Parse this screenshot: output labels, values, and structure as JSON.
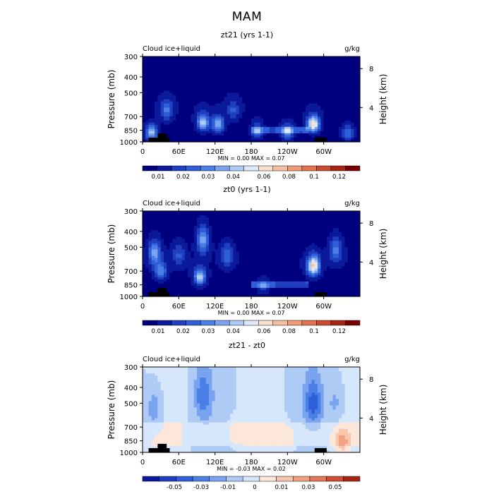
{
  "page_title": "MAM",
  "colors": {
    "full_scale": [
      "#00007f",
      "#0a1a9a",
      "#1f3fbf",
      "#2f5fd8",
      "#4a7fe6",
      "#7aa3ef",
      "#aecbf6",
      "#dde9fa",
      "#fbe0d0",
      "#f6bfa1",
      "#ef9c77",
      "#e47350",
      "#cc4a2e",
      "#a82414",
      "#7a0000"
    ],
    "diff_scale": [
      "#0a1a9a",
      "#1f3fbf",
      "#2f5fd8",
      "#4a7fe6",
      "#7aa3ef",
      "#aecbf6",
      "#d6e6fb",
      "#fce7da",
      "#f7c6ad",
      "#f0a283",
      "#e4775a",
      "#cf4d35",
      "#a82414"
    ],
    "land": "#000000"
  },
  "chart_data": [
    {
      "type": "heatmap",
      "title": "zt21 (yrs 1-1)",
      "left_label": "Cloud ice+liquid",
      "unit": "g/kg",
      "ylabel": "Pressure (mb)",
      "y2label": "Height (km)",
      "x_ticks": [
        "0",
        "60E",
        "120E",
        "180",
        "120W",
        "60W"
      ],
      "y_ticks": [
        "300",
        "400",
        "500",
        "700",
        "850",
        "1000"
      ],
      "y2_ticks": [
        "8",
        "4"
      ],
      "stats": "MIN =     0.00   MAX =     0.07",
      "colorbar_labels": [
        "0.01",
        "0.02",
        "0.03",
        "0.04",
        "0.06",
        "0.08",
        "0.1",
        "0.12"
      ],
      "features": [
        {
          "lon": 40,
          "p": 640,
          "v": 0.03
        },
        {
          "lon": 15,
          "p": 880,
          "v": 0.05
        },
        {
          "lon": 100,
          "p": 760,
          "v": 0.05
        },
        {
          "lon": 125,
          "p": 780,
          "v": 0.045
        },
        {
          "lon": 150,
          "p": 640,
          "v": 0.02
        },
        {
          "lon": 190,
          "p": 860,
          "v": 0.03
        },
        {
          "lon": 240,
          "p": 870,
          "v": 0.04
        },
        {
          "lon": 283,
          "p": 780,
          "v": 0.07
        },
        {
          "lon": 340,
          "p": 880,
          "v": 0.03
        }
      ]
    },
    {
      "type": "heatmap",
      "title": "zt0 (yrs 1-1)",
      "left_label": "Cloud ice+liquid",
      "unit": "g/kg",
      "ylabel": "Pressure (mb)",
      "y2label": "Height (km)",
      "x_ticks": [
        "0",
        "60E",
        "120E",
        "180",
        "120W",
        "60W"
      ],
      "y_ticks": [
        "300",
        "400",
        "500",
        "700",
        "850",
        "1000"
      ],
      "y2_ticks": [
        "8",
        "4"
      ],
      "stats": "MIN =     0.00   MAX =     0.07",
      "colorbar_labels": [
        "0.01",
        "0.02",
        "0.03",
        "0.04",
        "0.06",
        "0.08",
        "0.1",
        "0.12"
      ],
      "features": [
        {
          "lon": 20,
          "p": 540,
          "v": 0.04
        },
        {
          "lon": 30,
          "p": 700,
          "v": 0.035
        },
        {
          "lon": 60,
          "p": 560,
          "v": 0.02
        },
        {
          "lon": 95,
          "p": 760,
          "v": 0.05
        },
        {
          "lon": 100,
          "p": 450,
          "v": 0.04
        },
        {
          "lon": 140,
          "p": 560,
          "v": 0.025
        },
        {
          "lon": 200,
          "p": 870,
          "v": 0.02
        },
        {
          "lon": 283,
          "p": 650,
          "v": 0.07
        },
        {
          "lon": 320,
          "p": 520,
          "v": 0.03
        }
      ]
    },
    {
      "type": "heatmap",
      "title": "zt21 - zt0",
      "left_label": "Cloud ice+liquid",
      "unit": "g/kg",
      "ylabel": "Pressure (mb)",
      "y2label": "Height (km)",
      "x_ticks": [
        "0",
        "60E",
        "120E",
        "180",
        "120W",
        "60W"
      ],
      "y_ticks": [
        "300",
        "400",
        "500",
        "700",
        "850",
        "1000"
      ],
      "y2_ticks": [
        "8",
        "4"
      ],
      "stats": "MIN =    -0.03   MAX =     0.02",
      "colorbar_labels": [
        "-0.05",
        "-0.03",
        "-0.01",
        "0",
        "0.01",
        "0.03",
        "0.05"
      ],
      "features": [
        {
          "lon": 100,
          "p": 450,
          "v": -0.02
        },
        {
          "lon": 20,
          "p": 540,
          "v": -0.015
        },
        {
          "lon": 283,
          "p": 500,
          "v": -0.025
        },
        {
          "lon": 320,
          "p": 500,
          "v": -0.01
        },
        {
          "lon": 150,
          "p": 760,
          "v": 0.005
        },
        {
          "lon": 240,
          "p": 860,
          "v": 0.01
        },
        {
          "lon": 330,
          "p": 860,
          "v": 0.02
        }
      ]
    }
  ]
}
